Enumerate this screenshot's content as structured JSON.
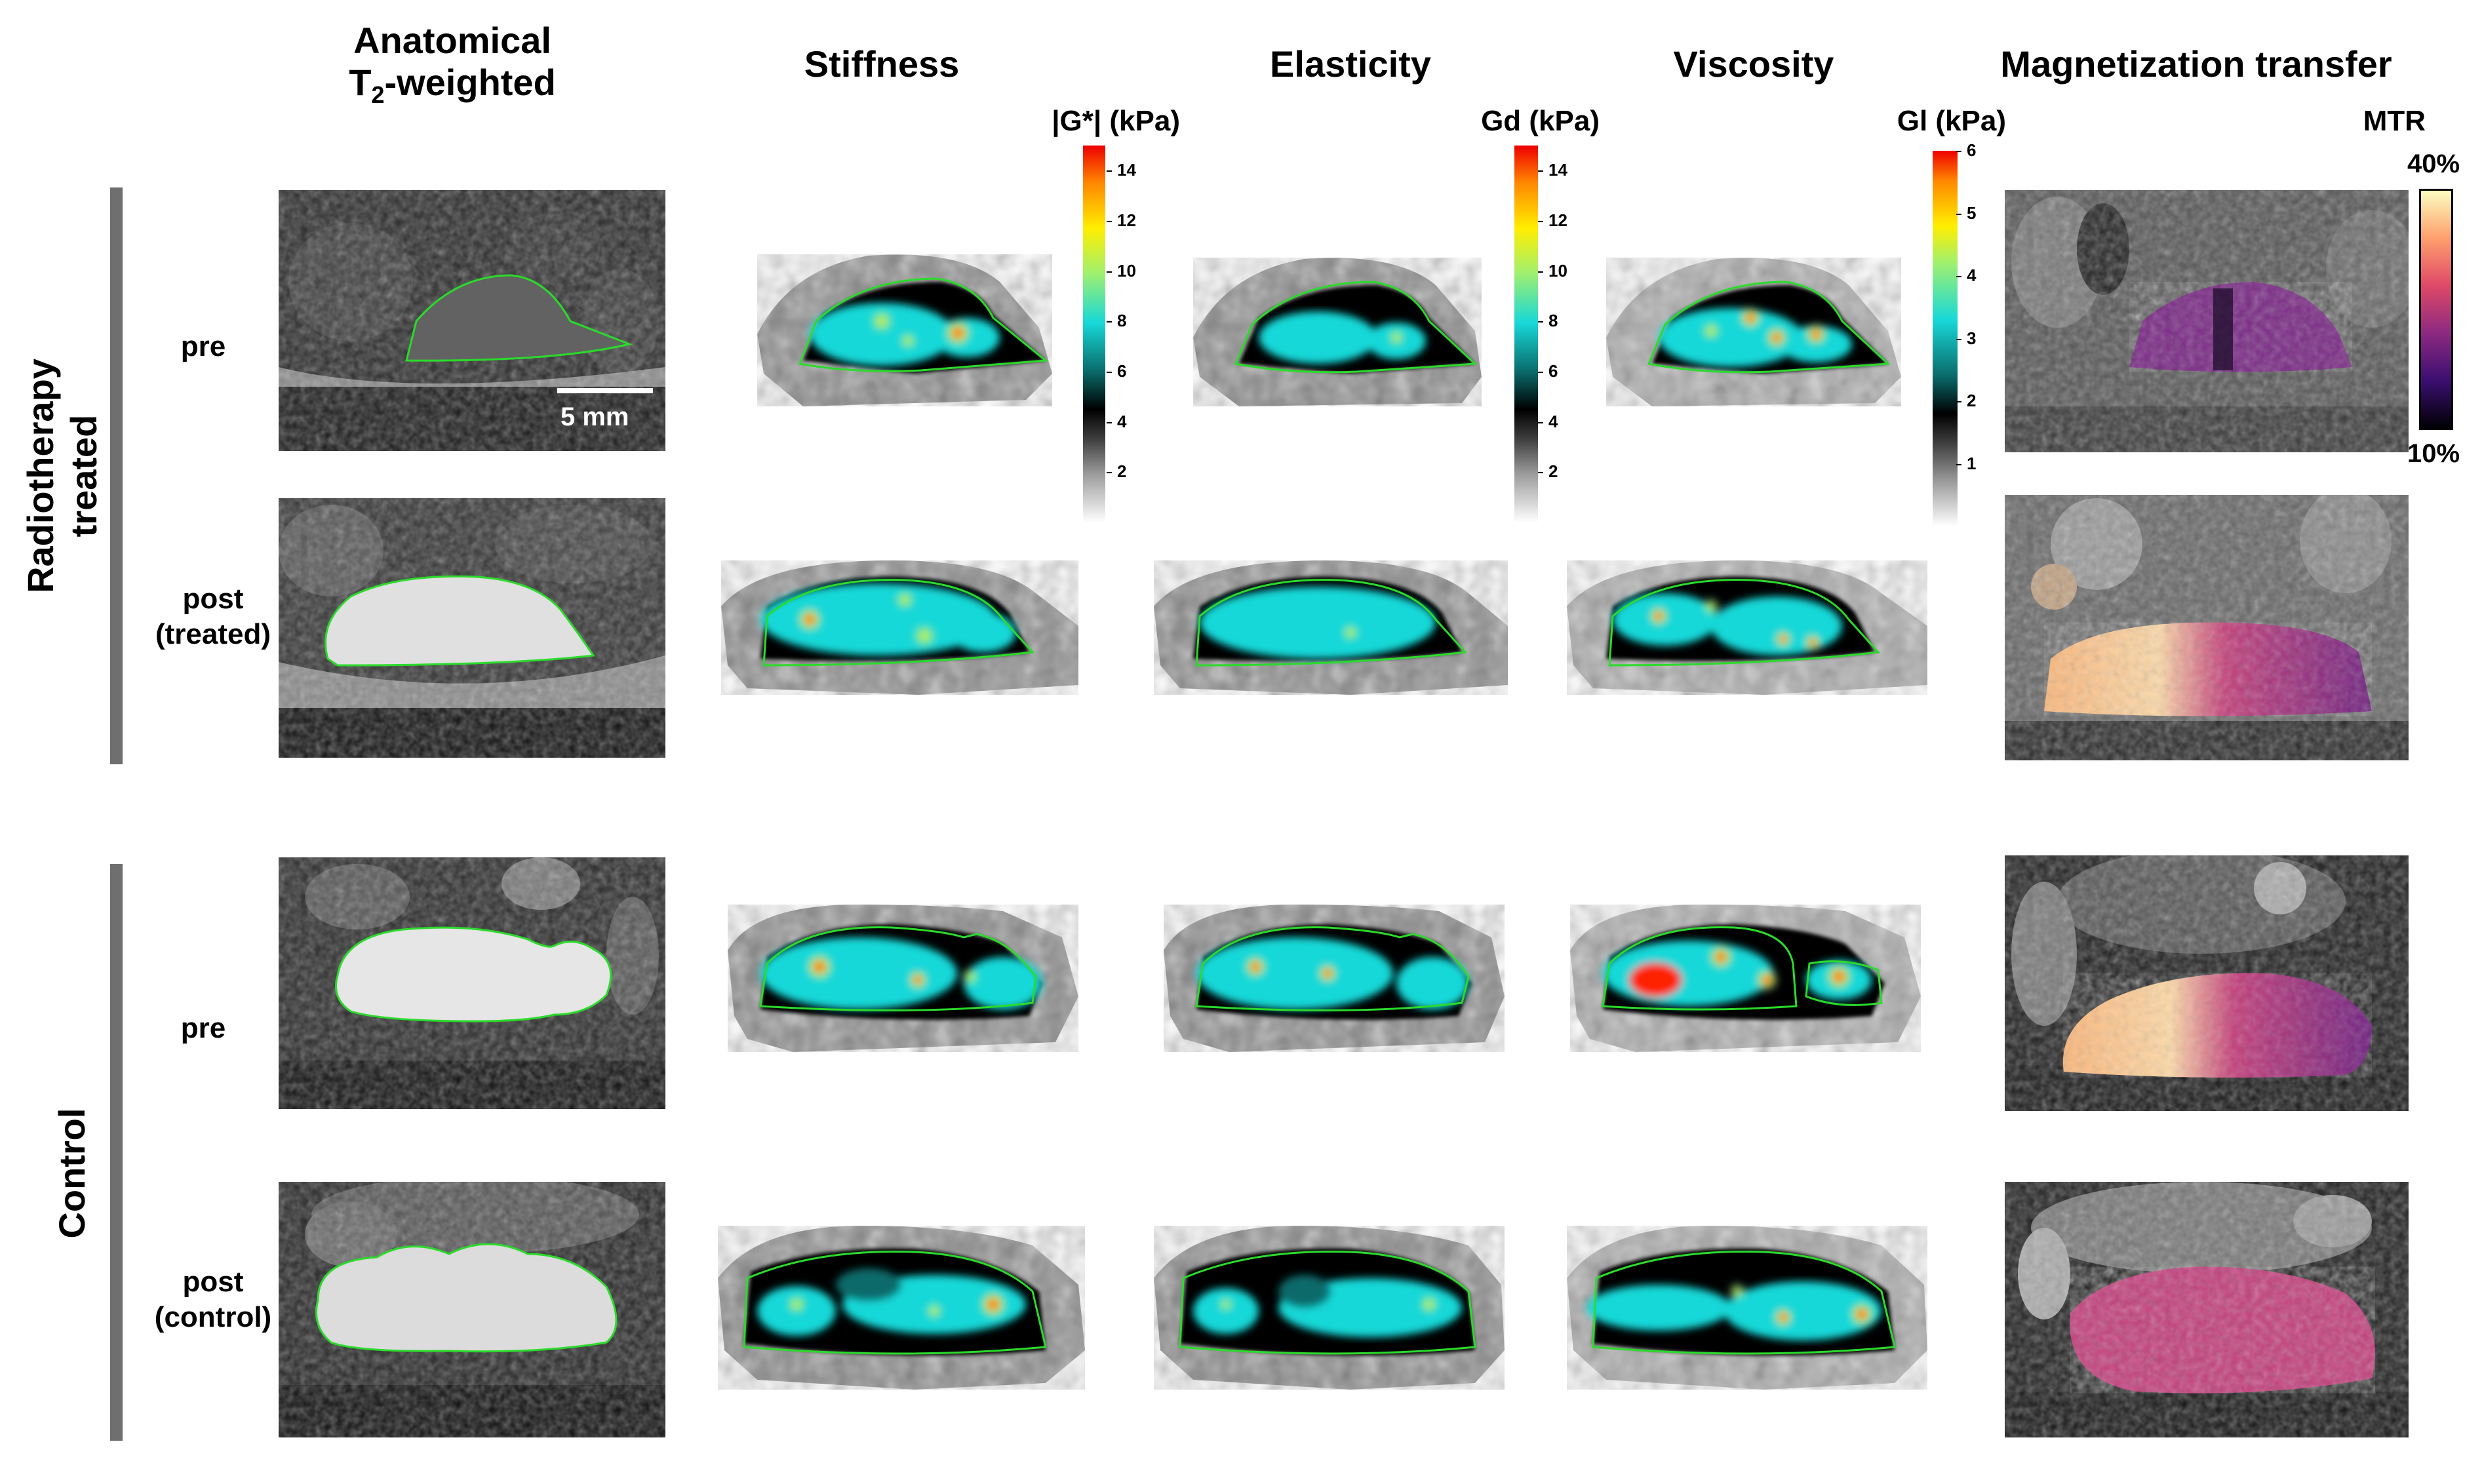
{
  "columns": {
    "anatomical": {
      "line1": "Anatomical",
      "line2_base": "T",
      "line2_sub": "2",
      "line2_rest": "-weighted"
    },
    "stiffness": "Stiffness",
    "elasticity": "Elasticity",
    "viscosity": "Viscosity",
    "mt": "Magnetization transfer"
  },
  "groups": {
    "radiotherapy": {
      "line1": "Radiotherapy",
      "line2": "treated"
    },
    "control": "Control"
  },
  "rows": {
    "r1": "pre",
    "r2_line1": "post",
    "r2_line2": "(treated)",
    "r3": "pre",
    "r4_line1": "post",
    "r4_line2": "(control)"
  },
  "scalebar": "5 mm",
  "colorbars": {
    "stiffness": {
      "title": "|G*| (kPa)",
      "ticks": [
        "14",
        "12",
        "10",
        "8",
        "6",
        "4",
        "2"
      ],
      "max": 15
    },
    "elasticity": {
      "title": "Gd (kPa)",
      "ticks": [
        "14",
        "12",
        "10",
        "8",
        "6",
        "4",
        "2"
      ],
      "max": 15
    },
    "viscosity": {
      "title": "Gl (kPa)",
      "ticks": [
        "6",
        "5",
        "4",
        "3",
        "2",
        "1"
      ],
      "max": 6
    },
    "mtr": {
      "title": "MTR",
      "top": "40%",
      "bottom": "10%"
    }
  },
  "colors": {
    "roi": "#2bdb2b",
    "group_bar": "#6f6f6f"
  }
}
